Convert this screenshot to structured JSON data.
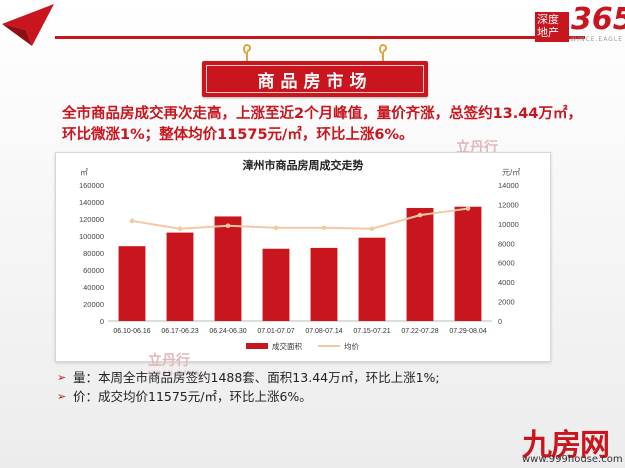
{
  "header": {
    "brand_a": "深度",
    "brand_b": "地产",
    "brand_num": "365",
    "brand_sub": "WINCE.EAGLE",
    "accent": "#c8151e"
  },
  "banner": {
    "title": "商品房市场"
  },
  "headline": "全市商品房成交再次走高，上涨至近2个月峰值，量价齐涨，总签约13.44万㎡，环比微涨1%；整体均价11575元/㎡，环比上涨6%。",
  "watermark": {
    "name": "立丹行",
    "sub": "LIDAN HANG"
  },
  "chart_data": {
    "type": "bar",
    "title": "漳州市商品房周成交走势",
    "left_unit": "㎡",
    "right_unit": "元/㎡",
    "categories": [
      "06.10-06.16",
      "06.17-06.23",
      "06.24-06.30",
      "07.01-07.07",
      "07.08-07.14",
      "07.15-07.21",
      "07.22-07.28",
      "07.29-08.04"
    ],
    "series": [
      {
        "name": "成交面积",
        "type": "bar",
        "axis": "left",
        "color": "#c8151e",
        "values": [
          88000,
          104000,
          123000,
          85000,
          86000,
          98000,
          133000,
          134400
        ]
      },
      {
        "name": "均价",
        "type": "line",
        "axis": "right",
        "color": "#f2c9a2",
        "values": [
          10300,
          9500,
          9800,
          9600,
          9600,
          9500,
          10900,
          11575
        ]
      }
    ],
    "ylim_left": [
      0,
      160000
    ],
    "ylim_right": [
      0,
      14000
    ],
    "yticks_left": [
      "0",
      "20000",
      "40000",
      "60000",
      "80000",
      "100000",
      "120000",
      "140000",
      "160000"
    ],
    "yticks_right": [
      "0",
      "2000",
      "4000",
      "6000",
      "8000",
      "10000",
      "12000",
      "14000"
    ],
    "legend": "bottom"
  },
  "bullets": [
    "量：本周全市商品房签约1488套、面积13.44万㎡，环比上涨1%;",
    "价：成交均价11575元/㎡，环比上涨6%。"
  ],
  "site": {
    "logo": "九房网",
    "url": "www.999house.com"
  }
}
